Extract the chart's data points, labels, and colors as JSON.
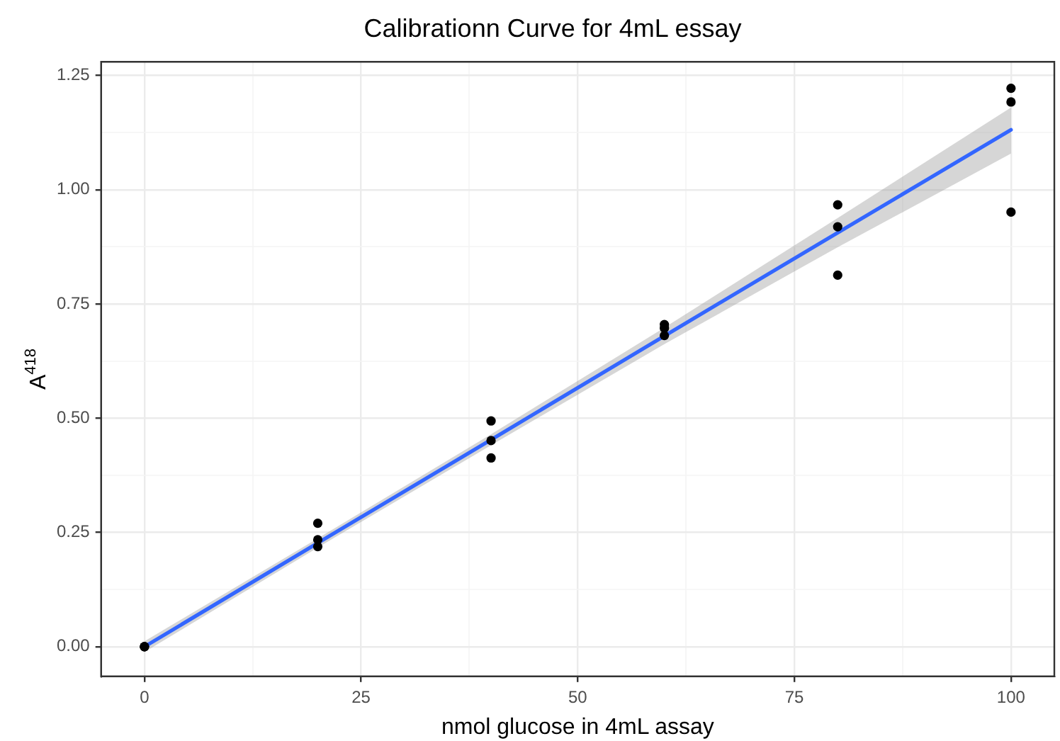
{
  "chart_data": {
    "type": "scatter",
    "title": "Calibrationn Curve for 4mL essay",
    "xlabel": "nmol glucose in 4mL assay",
    "ylabel": "A$^{418}$",
    "series": [
      {
        "type": "scatter",
        "color": "#000000",
        "marker": "circle",
        "x": [
          0,
          0,
          0,
          20,
          20,
          20,
          40,
          40,
          40,
          60,
          60,
          60,
          80,
          80,
          80,
          100,
          100,
          100
        ],
        "values": [
          0,
          0,
          0,
          0.27,
          0.234,
          0.219,
          0.494,
          0.451,
          0.413,
          0.705,
          0.697,
          0.681,
          0.967,
          0.919,
          0.813,
          1.222,
          1.192,
          0.951
        ]
      },
      {
        "type": "line",
        "color": "#3366ff",
        "marker": "none",
        "line_style": "solid",
        "x": [
          0,
          20,
          40,
          60,
          80,
          100
        ],
        "values": [
          0,
          0.227,
          0.453,
          0.68,
          0.906,
          1.131
        ],
        "lower": [
          -0.012,
          0.217,
          0.441,
          0.662,
          0.874,
          1.079
        ],
        "upper": [
          0.012,
          0.237,
          0.465,
          0.698,
          0.938,
          1.18
        ]
      }
    ],
    "xlim": [
      -5,
      105
    ],
    "xticks": [
      0,
      25,
      50,
      75,
      100
    ],
    "ylim": [
      -0.065,
      1.28
    ],
    "yticks": [
      {
        "value": 0,
        "label": "0.00"
      },
      {
        "value": 0.25,
        "label": "0.25"
      },
      {
        "value": 0.5,
        "label": "0.50"
      },
      {
        "value": 0.75,
        "label": "0.75"
      },
      {
        "value": 1,
        "label": "1.00"
      },
      {
        "value": 1.25,
        "label": "1.25"
      }
    ],
    "grid": true,
    "legend": false
  }
}
